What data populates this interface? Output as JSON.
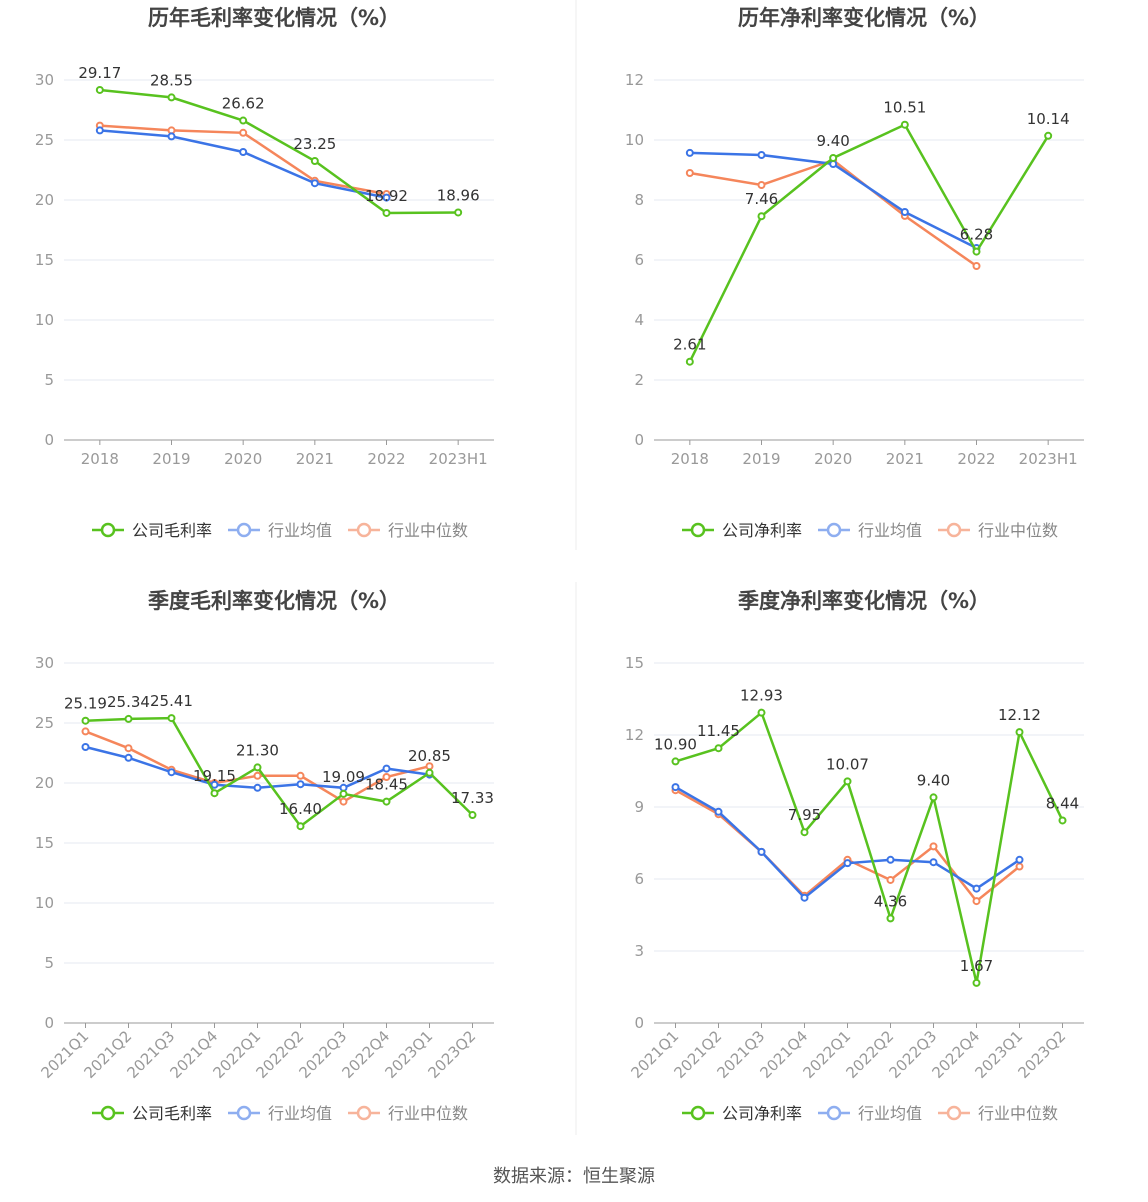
{
  "colors": {
    "company": "#58c21f",
    "avg": "#3b74e6",
    "median": "#f5865b",
    "avg_legend": "#8eaef0",
    "median_legend": "#f7b49b",
    "grid": "#e6e9f2",
    "axis": "#999999",
    "text": "#444444"
  },
  "chart_data": [
    {
      "type": "line",
      "title": "历年毛利率变化情况（%）",
      "categories": [
        "2018",
        "2019",
        "2020",
        "2021",
        "2022",
        "2023H1"
      ],
      "ylim": [
        0,
        30
      ],
      "yticks": [
        "0",
        "5",
        "10",
        "15",
        "20",
        "25",
        "30"
      ],
      "ytick_values": [
        0,
        5,
        10,
        15,
        20,
        25,
        30
      ],
      "grid": true,
      "legend": "bottom",
      "rotate_labels": false,
      "series": [
        {
          "name": "公司毛利率",
          "values": [
            29.17,
            28.55,
            26.62,
            23.25,
            18.92,
            18.96
          ],
          "labels": [
            "29.17",
            "28.55",
            "26.62",
            "23.25",
            "18.92",
            "18.96"
          ]
        },
        {
          "name": "行业均值",
          "values": [
            25.8,
            25.3,
            24.0,
            21.4,
            20.2,
            null
          ]
        },
        {
          "name": "行业中位数",
          "values": [
            26.2,
            25.8,
            25.6,
            21.6,
            20.5,
            null
          ]
        }
      ]
    },
    {
      "type": "line",
      "title": "历年净利率变化情况（%）",
      "categories": [
        "2018",
        "2019",
        "2020",
        "2021",
        "2022",
        "2023H1"
      ],
      "ylim": [
        0,
        12
      ],
      "yticks": [
        "0",
        "2",
        "4",
        "6",
        "8",
        "10",
        "12"
      ],
      "ytick_values": [
        0,
        2,
        4,
        6,
        8,
        10,
        12
      ],
      "grid": true,
      "legend": "bottom",
      "rotate_labels": false,
      "series": [
        {
          "name": "公司净利率",
          "values": [
            2.61,
            7.46,
            9.4,
            10.51,
            6.28,
            10.14
          ],
          "labels": [
            "2.61",
            "7.46",
            "9.40",
            "10.51",
            "6.28",
            "10.14"
          ]
        },
        {
          "name": "行业均值",
          "values": [
            9.57,
            9.5,
            9.2,
            7.6,
            6.4,
            null
          ]
        },
        {
          "name": "行业中位数",
          "values": [
            8.9,
            8.5,
            9.33,
            7.47,
            5.8,
            null
          ]
        }
      ]
    },
    {
      "type": "line",
      "title": "季度毛利率变化情况（%）",
      "categories": [
        "2021Q1",
        "2021Q2",
        "2021Q3",
        "2021Q4",
        "2022Q1",
        "2022Q2",
        "2022Q3",
        "2022Q4",
        "2023Q1",
        "2023Q2"
      ],
      "ylim": [
        0,
        30
      ],
      "yticks": [
        "0",
        "5",
        "10",
        "15",
        "20",
        "25",
        "30"
      ],
      "ytick_values": [
        0,
        5,
        10,
        15,
        20,
        25,
        30
      ],
      "grid": true,
      "legend": "bottom",
      "rotate_labels": true,
      "series": [
        {
          "name": "公司毛利率",
          "values": [
            25.19,
            25.34,
            25.41,
            19.15,
            21.3,
            16.4,
            19.09,
            18.45,
            20.85,
            17.33
          ],
          "labels": [
            "25.19",
            "25.34",
            "25.41",
            "19.15",
            "21.30",
            "16.40",
            "19.09",
            "18.45",
            "20.85",
            "17.33"
          ]
        },
        {
          "name": "行业均值",
          "values": [
            23.0,
            22.1,
            20.9,
            19.85,
            19.6,
            19.9,
            19.6,
            21.2,
            20.7,
            null
          ]
        },
        {
          "name": "行业中位数",
          "values": [
            24.3,
            22.9,
            21.1,
            20.0,
            20.6,
            20.6,
            18.45,
            20.5,
            21.4,
            null
          ]
        }
      ]
    },
    {
      "type": "line",
      "title": "季度净利率变化情况（%）",
      "categories": [
        "2021Q1",
        "2021Q2",
        "2021Q3",
        "2021Q4",
        "2022Q1",
        "2022Q2",
        "2022Q3",
        "2022Q4",
        "2023Q1",
        "2023Q2"
      ],
      "ylim": [
        0,
        15
      ],
      "yticks": [
        "0",
        "3",
        "6",
        "9",
        "12",
        "15"
      ],
      "ytick_values": [
        0,
        3,
        6,
        9,
        12,
        15
      ],
      "grid": true,
      "legend": "bottom",
      "rotate_labels": true,
      "series": [
        {
          "name": "公司净利率",
          "values": [
            10.9,
            11.45,
            12.93,
            7.95,
            10.07,
            4.36,
            9.4,
            1.67,
            12.12,
            8.44
          ],
          "labels": [
            "10.90",
            "11.45",
            "12.93",
            "7.95",
            "10.07",
            "4.36",
            "9.40",
            "1.67",
            "12.12",
            "8.44"
          ]
        },
        {
          "name": "行业均值",
          "values": [
            9.83,
            8.8,
            7.13,
            5.22,
            6.66,
            6.8,
            6.7,
            5.6,
            6.8,
            null
          ]
        },
        {
          "name": "行业中位数",
          "values": [
            9.7,
            8.7,
            7.13,
            5.3,
            6.8,
            5.96,
            7.36,
            5.08,
            6.52,
            null
          ]
        }
      ]
    }
  ],
  "footer": "数据来源：恒生聚源"
}
